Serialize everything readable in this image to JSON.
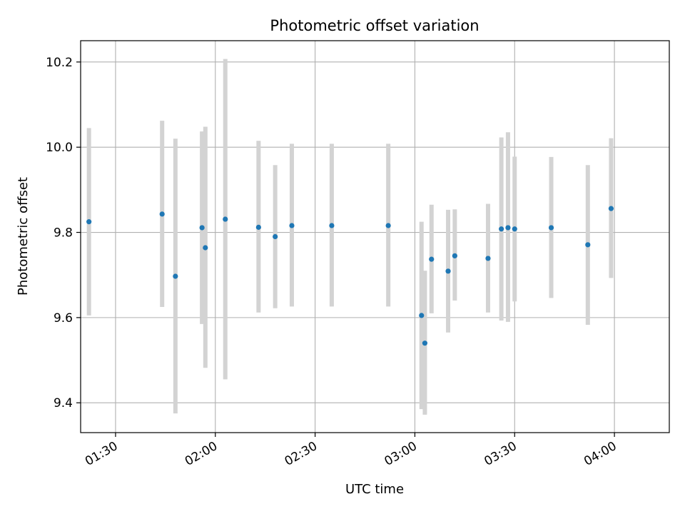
{
  "chart_data": {
    "type": "scatter",
    "title": "Photometric offset variation",
    "xlabel": "UTC time",
    "ylabel": "Photometric offset",
    "x_unit": "time (HH:MM)",
    "xlim": [
      "01:10",
      "03:60+04"
    ],
    "xlim_minutes": [
      79.5,
      256.5
    ],
    "ylim": [
      9.33,
      10.25
    ],
    "x_ticks": [
      "01:30",
      "02:00",
      "02:30",
      "03:00",
      "03:30",
      "04:00"
    ],
    "y_ticks": [
      "9.4",
      "9.6",
      "9.8",
      "10.0",
      "10.2"
    ],
    "grid": true,
    "colors": {
      "point": "#1f77b4",
      "errorbar": "#d3d3d3",
      "grid": "#b0b0b0"
    },
    "points": [
      {
        "time": "01:22",
        "y": 9.825,
        "ymin": 9.605,
        "ymax": 10.045
      },
      {
        "time": "01:44",
        "y": 9.843,
        "ymin": 9.625,
        "ymax": 10.062
      },
      {
        "time": "01:48",
        "y": 9.697,
        "ymin": 9.375,
        "ymax": 10.02
      },
      {
        "time": "01:56",
        "y": 9.811,
        "ymin": 9.585,
        "ymax": 10.037
      },
      {
        "time": "01:57",
        "y": 9.764,
        "ymin": 9.482,
        "ymax": 10.048
      },
      {
        "time": "02:03",
        "y": 9.831,
        "ymin": 9.455,
        "ymax": 10.207
      },
      {
        "time": "02:13",
        "y": 9.812,
        "ymin": 9.612,
        "ymax": 10.015
      },
      {
        "time": "02:18",
        "y": 9.79,
        "ymin": 9.622,
        "ymax": 9.958
      },
      {
        "time": "02:23",
        "y": 9.816,
        "ymin": 9.626,
        "ymax": 10.008
      },
      {
        "time": "02:35",
        "y": 9.816,
        "ymin": 9.626,
        "ymax": 10.008
      },
      {
        "time": "02:52",
        "y": 9.816,
        "ymin": 9.626,
        "ymax": 10.008
      },
      {
        "time": "03:02",
        "y": 9.605,
        "ymin": 9.385,
        "ymax": 9.825
      },
      {
        "time": "03:03",
        "y": 9.54,
        "ymin": 9.372,
        "ymax": 9.71
      },
      {
        "time": "03:05",
        "y": 9.737,
        "ymin": 9.61,
        "ymax": 9.865
      },
      {
        "time": "03:10",
        "y": 9.709,
        "ymin": 9.565,
        "ymax": 9.853
      },
      {
        "time": "03:12",
        "y": 9.745,
        "ymin": 9.64,
        "ymax": 9.854
      },
      {
        "time": "03:22",
        "y": 9.739,
        "ymin": 9.612,
        "ymax": 9.867
      },
      {
        "time": "03:26",
        "y": 9.808,
        "ymin": 9.593,
        "ymax": 10.023
      },
      {
        "time": "03:28",
        "y": 9.811,
        "ymin": 9.59,
        "ymax": 10.035
      },
      {
        "time": "03:30",
        "y": 9.808,
        "ymin": 9.638,
        "ymax": 9.978
      },
      {
        "time": "03:41",
        "y": 9.811,
        "ymin": 9.646,
        "ymax": 9.977
      },
      {
        "time": "03:52",
        "y": 9.771,
        "ymin": 9.583,
        "ymax": 9.958
      },
      {
        "time": "03:59",
        "y": 9.856,
        "ymin": 9.693,
        "ymax": 10.021
      }
    ]
  }
}
